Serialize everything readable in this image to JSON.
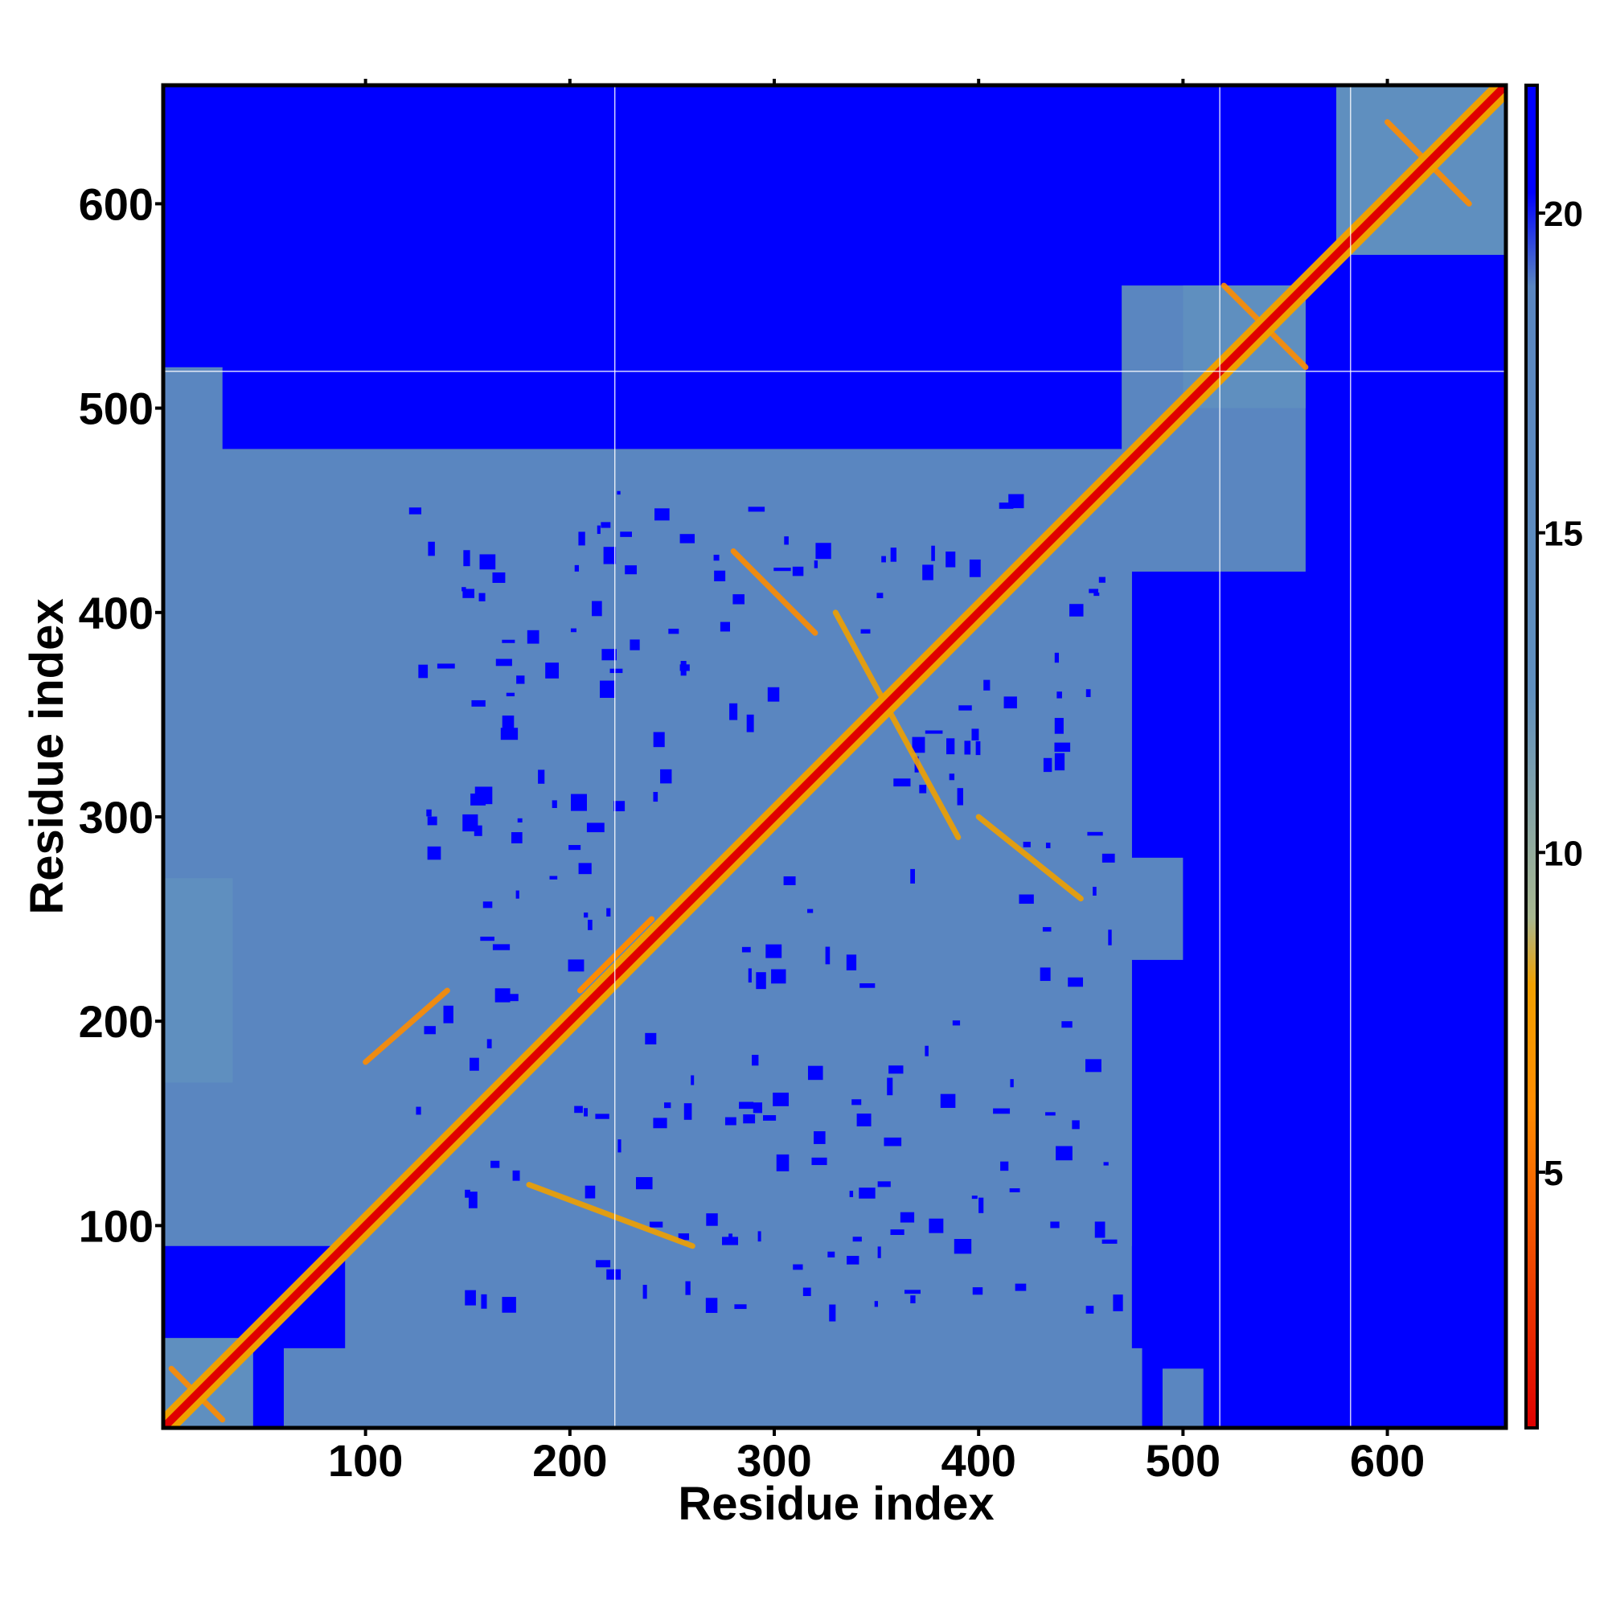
{
  "chart_data": {
    "type": "heatmap",
    "title": "",
    "xlabel": "Residue index",
    "ylabel": "Residue index",
    "xlim": [
      1,
      658
    ],
    "ylim": [
      1,
      658
    ],
    "n_residues": 658,
    "x_ticks": [
      100,
      200,
      300,
      400,
      500,
      600
    ],
    "y_ticks": [
      100,
      200,
      300,
      400,
      500,
      600
    ],
    "colorbar": {
      "range": [
        1,
        22
      ],
      "ticks": [
        5,
        10,
        15,
        20
      ],
      "stops": [
        {
          "value": 1,
          "color": "#e00000"
        },
        {
          "value": 6,
          "color": "#ff8c00"
        },
        {
          "value": 8,
          "color": "#f0a000"
        },
        {
          "value": 9.5,
          "color": "#a8b890"
        },
        {
          "value": 13,
          "color": "#5f8fbf"
        },
        {
          "value": 19,
          "color": "#5a86c0"
        },
        {
          "value": 21,
          "color": "#0000ff"
        }
      ]
    },
    "domain_boundaries": [
      222,
      518,
      582
    ],
    "contact_blocks": [
      {
        "x": [
          1,
          45
        ],
        "y": [
          1,
          45
        ],
        "value": 13
      },
      {
        "x": [
          1,
          475
        ],
        "y": [
          90,
          480
        ],
        "value": 15
      },
      {
        "x": [
          90,
          475
        ],
        "y": [
          1,
          475
        ],
        "value": 15
      },
      {
        "x": [
          470,
          560
        ],
        "y": [
          420,
          560
        ],
        "value": 15
      },
      {
        "x": [
          575,
          658
        ],
        "y": [
          575,
          658
        ],
        "value": 13
      },
      {
        "x": [
          500,
          560
        ],
        "y": [
          500,
          560
        ],
        "value": 12
      },
      {
        "x": [
          1,
          35
        ],
        "y": [
          170,
          270
        ],
        "value": 13
      },
      {
        "x": [
          1,
          30
        ],
        "y": [
          440,
          520
        ],
        "value": 14
      },
      {
        "x": [
          60,
          140
        ],
        "y": [
          1,
          40
        ],
        "value": 15
      },
      {
        "x": [
          170,
          260
        ],
        "y": [
          1,
          45
        ],
        "value": 15
      },
      {
        "x": [
          440,
          480
        ],
        "y": [
          1,
          40
        ],
        "value": 15
      },
      {
        "x": [
          490,
          510
        ],
        "y": [
          1,
          30
        ],
        "value": 15
      },
      {
        "x": [
          440,
          500
        ],
        "y": [
          230,
          280
        ],
        "value": 14
      },
      {
        "x": [
          490,
          520
        ],
        "y": [
          440,
          480
        ],
        "value": 14
      }
    ],
    "secondary_features": [
      {
        "from": [
          205,
          215
        ],
        "to": [
          240,
          250
        ],
        "value": 5
      },
      {
        "from": [
          240,
          250
        ],
        "to": [
          205,
          215
        ],
        "value": 5
      },
      {
        "from": [
          100,
          180
        ],
        "to": [
          140,
          215
        ],
        "value": 6
      },
      {
        "from": [
          280,
          430
        ],
        "to": [
          320,
          390
        ],
        "value": 6
      },
      {
        "from": [
          330,
          400
        ],
        "to": [
          390,
          290
        ],
        "value": 7
      },
      {
        "from": [
          520,
          560
        ],
        "to": [
          560,
          520
        ],
        "value": 5
      },
      {
        "from": [
          600,
          640
        ],
        "to": [
          640,
          600
        ],
        "value": 5
      },
      {
        "from": [
          5,
          30
        ],
        "to": [
          30,
          5
        ],
        "value": 6
      },
      {
        "from": [
          400,
          300
        ],
        "to": [
          450,
          260
        ],
        "value": 7
      },
      {
        "from": [
          180,
          120
        ],
        "to": [
          260,
          90
        ],
        "value": 7
      }
    ]
  }
}
